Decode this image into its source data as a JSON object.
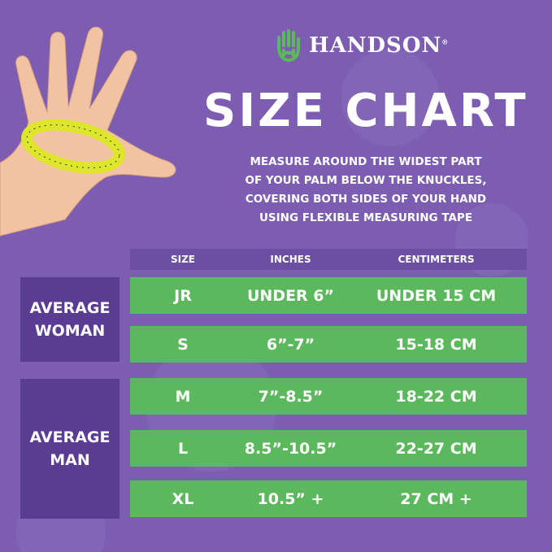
{
  "brand": {
    "name": "HANDSON",
    "registered": "®",
    "accent": "#5cb85c"
  },
  "title": "SIZE CHART",
  "instructions": [
    "MEASURE AROUND THE WIDEST PART",
    "OF YOUR PALM BELOW THE KNUCKLES,",
    "COVERING BOTH SIDES OF YOUR HAND",
    "USING FLEXIBLE MEASURING TAPE"
  ],
  "table": {
    "headers": [
      "SIZE",
      "INCHES",
      "CENTIMETERS"
    ],
    "groups": [
      {
        "label": "AVERAGE WOMAN"
      },
      {
        "label": "AVERAGE MAN"
      }
    ],
    "rows": [
      {
        "size": "JR",
        "inches": "UNDER 6”",
        "cm": "UNDER 15 CM"
      },
      {
        "size": "S",
        "inches": "6”-7”",
        "cm": "15-18 CM"
      },
      {
        "size": "M",
        "inches": "7”-8.5”",
        "cm": "18-22 CM"
      },
      {
        "size": "L",
        "inches": "8.5”-10.5”",
        "cm": "22-27 CM"
      },
      {
        "size": "XL",
        "inches": "10.5” +",
        "cm": "27 CM +"
      }
    ]
  },
  "colors": {
    "background": "#7c5db2",
    "header": "#6c4ea3",
    "row": "#5cb85c",
    "group": "#5a3c93"
  }
}
